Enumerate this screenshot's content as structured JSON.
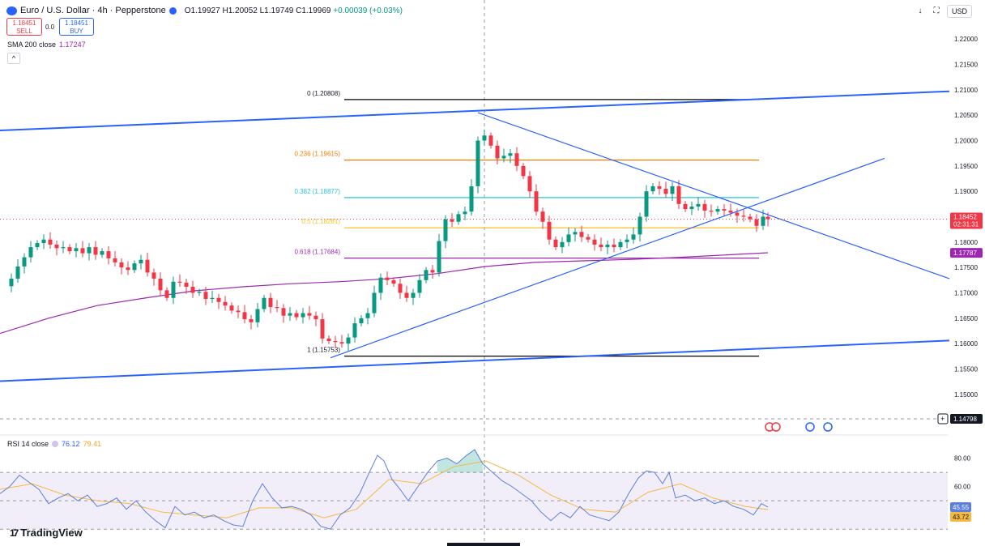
{
  "header": {
    "symbol": "Euro / U.S. Dollar · 4h · Pepperstone",
    "open": "O1.19927",
    "high": "H1.20052",
    "low": "L1.19749",
    "close": "C1.19969",
    "change": "+0.00039 (+0.03%)"
  },
  "trade": {
    "sell_price": "1.18451",
    "sell_label": "SELL",
    "spread": "0.0",
    "buy_price": "1.18451",
    "buy_label": "BUY"
  },
  "sma_legend": {
    "label": "SMA 200 close",
    "value": "1.17247"
  },
  "rsi_legend": {
    "label": "RSI 14 close",
    "value": "76.12",
    "value_ma": "79.41"
  },
  "top_right": {
    "currency": "USD"
  },
  "brand": {
    "name": "TradingView"
  },
  "colors": {
    "up": "#089981",
    "down": "#f23645",
    "sma": "#9c27b0",
    "trend": "#2962ff",
    "fib_0_1": "#000000",
    "fib_0236": "#f57c00",
    "fib_0382": "#26c6da",
    "fib_05": "#fbc02d",
    "fib_0618": "#9c27b0",
    "rsi": "#5b7fde",
    "rsi_ma": "#f5b942"
  },
  "chart_data": [
    {
      "type": "candlestick",
      "title": "Euro / U.S. Dollar · 4h · Pepperstone",
      "y_axis_ticks": [
        "1.22000",
        "1.21500",
        "1.21000",
        "1.20500",
        "1.20000",
        "1.19500",
        "1.19000",
        "1.18500",
        "1.18000",
        "1.17500",
        "1.17000",
        "1.16500",
        "1.16000",
        "1.15500",
        "1.15000"
      ],
      "ylim": [
        1.1455,
        1.2245
      ],
      "current_price": {
        "value": 1.18452,
        "label": "1.18452",
        "countdown": "02:31:31"
      },
      "sma_label": "1.17787",
      "crosshair_label": "1.14798",
      "fibonacci": [
        {
          "level": "0",
          "label": "0 (1.20808)",
          "price": 1.20808
        },
        {
          "level": "0.236",
          "label": "0.236 (1.19615)",
          "price": 1.19615
        },
        {
          "level": "0.382",
          "label": "0.382 (1.18877)",
          "price": 1.18877
        },
        {
          "level": "0.5",
          "label": "0.5 (1.18281)",
          "price": 1.18281
        },
        {
          "level": "0.618",
          "label": "0.618 (1.17684)",
          "price": 1.17684
        },
        {
          "level": "1",
          "label": "1 (1.15753)",
          "price": 1.15753
        }
      ],
      "series": [
        {
          "name": "SMA 200 close",
          "points": [
            [
              0,
              1.162
            ],
            [
              60,
              1.165
            ],
            [
              120,
              1.1675
            ],
            [
              180,
              1.169
            ],
            [
              240,
              1.1704
            ],
            [
              300,
              1.1712
            ],
            [
              360,
              1.1718
            ],
            [
              420,
              1.1722
            ],
            [
              480,
              1.1728
            ],
            [
              540,
              1.1738
            ],
            [
              600,
              1.1752
            ],
            [
              660,
              1.176
            ],
            [
              720,
              1.1763
            ],
            [
              780,
              1.1766
            ],
            [
              840,
              1.177
            ],
            [
              900,
              1.1775
            ],
            [
              948,
              1.1779
            ]
          ]
        },
        {
          "name": "closes",
          "points": [
            [
              6,
              1.1713
            ],
            [
              14,
              1.1728
            ],
            [
              22,
              1.1752
            ],
            [
              30,
              1.177
            ],
            [
              38,
              1.179
            ],
            [
              46,
              1.1798
            ],
            [
              54,
              1.1805
            ],
            [
              62,
              1.1795
            ],
            [
              70,
              1.1788
            ],
            [
              78,
              1.179
            ],
            [
              86,
              1.1782
            ],
            [
              94,
              1.1788
            ],
            [
              102,
              1.1778
            ],
            [
              110,
              1.179
            ],
            [
              118,
              1.1775
            ],
            [
              126,
              1.1782
            ],
            [
              134,
              1.1768
            ],
            [
              142,
              1.176
            ],
            [
              150,
              1.175
            ],
            [
              158,
              1.1745
            ],
            [
              166,
              1.1758
            ],
            [
              174,
              1.1765
            ],
            [
              182,
              1.174
            ],
            [
              190,
              1.1728
            ],
            [
              198,
              1.1705
            ],
            [
              206,
              1.169
            ],
            [
              214,
              1.1722
            ],
            [
              222,
              1.172
            ],
            [
              230,
              1.1712
            ],
            [
              238,
              1.17
            ],
            [
              246,
              1.1702
            ],
            [
              254,
              1.1688
            ],
            [
              262,
              1.169
            ],
            [
              270,
              1.1682
            ],
            [
              278,
              1.1675
            ],
            [
              286,
              1.1665
            ],
            [
              294,
              1.1662
            ],
            [
              302,
              1.1648
            ],
            [
              310,
              1.1642
            ],
            [
              318,
              1.1668
            ],
            [
              326,
              1.169
            ],
            [
              334,
              1.1672
            ],
            [
              342,
              1.167
            ],
            [
              350,
              1.1655
            ],
            [
              358,
              1.166
            ],
            [
              366,
              1.1652
            ],
            [
              374,
              1.166
            ],
            [
              382,
              1.1655
            ],
            [
              390,
              1.1648
            ],
            [
              398,
              1.161
            ],
            [
              406,
              1.1605
            ],
            [
              414,
              1.1603
            ],
            [
              422,
              1.16
            ],
            [
              430,
              1.1612
            ],
            [
              438,
              1.164
            ],
            [
              446,
              1.165
            ],
            [
              454,
              1.166
            ],
            [
              462,
              1.17
            ],
            [
              470,
              1.173
            ],
            [
              478,
              1.1725
            ],
            [
              486,
              1.1718
            ],
            [
              494,
              1.17
            ],
            [
              502,
              1.169
            ],
            [
              510,
              1.17
            ],
            [
              518,
              1.1725
            ],
            [
              526,
              1.1745
            ],
            [
              534,
              1.174
            ],
            [
              542,
              1.1802
            ],
            [
              550,
              1.1845
            ],
            [
              558,
              1.184
            ],
            [
              566,
              1.1855
            ],
            [
              574,
              1.186
            ],
            [
              582,
              1.191
            ],
            [
              590,
              1.2
            ],
            [
              598,
              1.201
            ],
            [
              606,
              1.199
            ],
            [
              614,
              1.1965
            ],
            [
              622,
              1.197
            ],
            [
              630,
              1.1975
            ],
            [
              638,
              1.195
            ],
            [
              646,
              1.193
            ],
            [
              654,
              1.19
            ],
            [
              662,
              1.186
            ],
            [
              670,
              1.184
            ],
            [
              678,
              1.1805
            ],
            [
              686,
              1.179
            ],
            [
              694,
              1.18
            ],
            [
              702,
              1.1815
            ],
            [
              710,
              1.182
            ],
            [
              718,
              1.181
            ],
            [
              726,
              1.1805
            ],
            [
              734,
              1.1795
            ],
            [
              742,
              1.179
            ],
            [
              750,
              1.1795
            ],
            [
              758,
              1.179
            ],
            [
              766,
              1.18
            ],
            [
              774,
              1.1805
            ],
            [
              782,
              1.1815
            ],
            [
              790,
              1.185
            ],
            [
              798,
              1.19
            ],
            [
              806,
              1.191
            ],
            [
              814,
              1.1905
            ],
            [
              822,
              1.1895
            ],
            [
              830,
              1.191
            ],
            [
              838,
              1.1875
            ],
            [
              846,
              1.1865
            ],
            [
              854,
              1.187
            ],
            [
              862,
              1.1875
            ],
            [
              870,
              1.1862
            ],
            [
              878,
              1.186
            ],
            [
              886,
              1.1865
            ],
            [
              894,
              1.1862
            ],
            [
              902,
              1.1858
            ],
            [
              910,
              1.1852
            ],
            [
              918,
              1.185
            ],
            [
              926,
              1.1845
            ],
            [
              934,
              1.1832
            ],
            [
              942,
              1.185
            ],
            [
              948,
              1.1845
            ]
          ]
        }
      ]
    },
    {
      "type": "line",
      "title": "RSI 14 close",
      "y_axis_ticks": [
        "80.00",
        "60.00"
      ],
      "ylim": [
        25,
        90
      ],
      "value_labels": [
        "45.55",
        "43.72"
      ],
      "band": [
        30,
        70
      ],
      "series": [
        {
          "name": "RSI",
          "points": [
            [
              0,
              55
            ],
            [
              12,
              60
            ],
            [
              24,
              68
            ],
            [
              36,
              63
            ],
            [
              48,
              58
            ],
            [
              60,
              48
            ],
            [
              72,
              52
            ],
            [
              84,
              55
            ],
            [
              96,
              50
            ],
            [
              108,
              54
            ],
            [
              120,
              46
            ],
            [
              132,
              48
            ],
            [
              144,
              52
            ],
            [
              156,
              44
            ],
            [
              168,
              50
            ],
            [
              180,
              42
            ],
            [
              192,
              36
            ],
            [
              204,
              31
            ],
            [
              216,
              46
            ],
            [
              228,
              40
            ],
            [
              240,
              42
            ],
            [
              252,
              38
            ],
            [
              264,
              40
            ],
            [
              276,
              36
            ],
            [
              288,
              33
            ],
            [
              300,
              32
            ],
            [
              312,
              50
            ],
            [
              324,
              62
            ],
            [
              336,
              52
            ],
            [
              348,
              45
            ],
            [
              360,
              46
            ],
            [
              372,
              44
            ],
            [
              384,
              40
            ],
            [
              396,
              32
            ],
            [
              408,
              30
            ],
            [
              420,
              40
            ],
            [
              432,
              45
            ],
            [
              444,
              55
            ],
            [
              456,
              70
            ],
            [
              466,
              82
            ],
            [
              474,
              78
            ],
            [
              484,
              65
            ],
            [
              494,
              58
            ],
            [
              504,
              50
            ],
            [
              516,
              60
            ],
            [
              528,
              70
            ],
            [
              540,
              78
            ],
            [
              552,
              80
            ],
            [
              564,
              76
            ],
            [
              576,
              82
            ],
            [
              586,
              86
            ],
            [
              596,
              76
            ],
            [
              608,
              70
            ],
            [
              620,
              64
            ],
            [
              632,
              60
            ],
            [
              644,
              55
            ],
            [
              656,
              50
            ],
            [
              668,
              42
            ],
            [
              680,
              36
            ],
            [
              692,
              42
            ],
            [
              704,
              38
            ],
            [
              716,
              46
            ],
            [
              728,
              40
            ],
            [
              740,
              38
            ],
            [
              752,
              36
            ],
            [
              764,
              42
            ],
            [
              776,
              55
            ],
            [
              788,
              66
            ],
            [
              798,
              71
            ],
            [
              808,
              70
            ],
            [
              818,
              62
            ],
            [
              826,
              70
            ],
            [
              834,
              52
            ],
            [
              846,
              54
            ],
            [
              858,
              50
            ],
            [
              870,
              52
            ],
            [
              882,
              48
            ],
            [
              894,
              50
            ],
            [
              906,
              46
            ],
            [
              918,
              44
            ],
            [
              930,
              40
            ],
            [
              940,
              48
            ],
            [
              948,
              45.55
            ]
          ]
        },
        {
          "name": "RSI MA",
          "points": [
            [
              0,
              58
            ],
            [
              40,
              62
            ],
            [
              80,
              54
            ],
            [
              120,
              50
            ],
            [
              160,
              48
            ],
            [
              200,
              42
            ],
            [
              240,
              40
            ],
            [
              280,
              38
            ],
            [
              320,
              45
            ],
            [
              360,
              45
            ],
            [
              400,
              38
            ],
            [
              440,
              44
            ],
            [
              480,
              65
            ],
            [
              520,
              62
            ],
            [
              560,
              74
            ],
            [
              600,
              78
            ],
            [
              640,
              68
            ],
            [
              680,
              54
            ],
            [
              720,
              44
            ],
            [
              760,
              42
            ],
            [
              800,
              56
            ],
            [
              840,
              62
            ],
            [
              880,
              52
            ],
            [
              920,
              46
            ],
            [
              948,
              43.72
            ]
          ]
        }
      ]
    }
  ]
}
